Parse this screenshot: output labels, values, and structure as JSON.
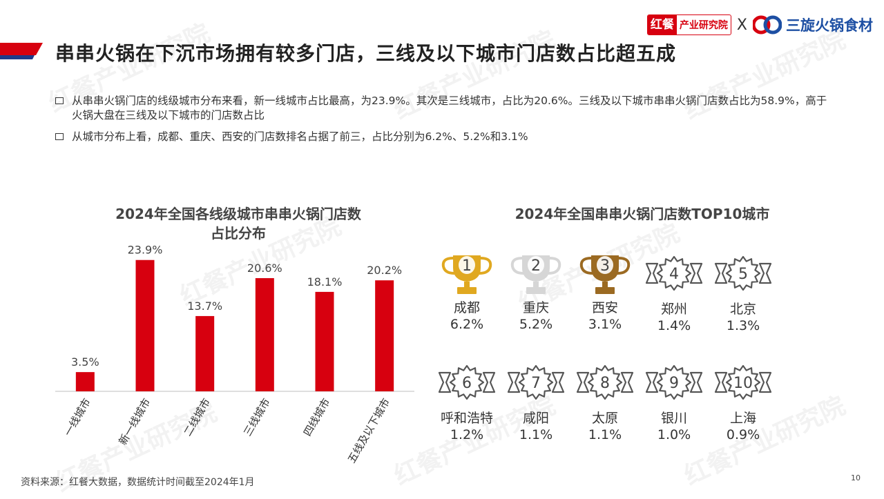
{
  "header": {
    "title": "串串火锅在下沉市场拥有较多门店，三线及以下城市门店数占比超五成",
    "accent_color": "#d7000f",
    "accent_dark": "#1e3a8a"
  },
  "logos": {
    "left_main": "红餐",
    "left_sub": "产业研究院",
    "separator": "X",
    "right_name": "三旋火锅食材",
    "watermark": "红餐产业研究院"
  },
  "bullets": [
    "从串串火锅门店的线级城市分布来看，新一线城市占比最高，为23.9%。其次是三线城市，占比为20.6%。三线及以下城市串串火锅门店数占比为58.9%，高于火锅大盘在三线及以下城市的门店数占比",
    "从城市分布上看，成都、重庆、西安的门店数排名占据了前三，占比分别为6.2%、5.2%和3.1%"
  ],
  "chart_data": [
    {
      "type": "bar",
      "title_line1": "2024年全国各线级城市串串火锅门店数",
      "title_line2": "占比分布",
      "categories": [
        "一线城市",
        "新一线城市",
        "二线城市",
        "三线城市",
        "四线城市",
        "五线及以下城市"
      ],
      "values": [
        3.5,
        23.9,
        13.7,
        20.6,
        18.1,
        20.2
      ],
      "value_labels": [
        "3.5%",
        "23.9%",
        "13.7%",
        "20.6%",
        "18.1%",
        "20.2%"
      ],
      "ylim": [
        0,
        26
      ],
      "bar_color": "#d7000f",
      "grid": false
    },
    {
      "type": "table",
      "title": "2024年全国串串火锅门店数TOP10城市",
      "items": [
        {
          "rank": "1",
          "city": "成都",
          "pct": "6.2%",
          "icon": "trophy-gold-icon",
          "color": "#e0a820"
        },
        {
          "rank": "2",
          "city": "重庆",
          "pct": "5.2%",
          "icon": "trophy-silver-icon",
          "color": "#d6d6d6"
        },
        {
          "rank": "3",
          "city": "西安",
          "pct": "3.1%",
          "icon": "trophy-bronze-icon",
          "color": "#9b6a22"
        },
        {
          "rank": "4",
          "city": "郑州",
          "pct": "1.4%",
          "icon": "rank-badge-icon",
          "color": "#555555"
        },
        {
          "rank": "5",
          "city": "北京",
          "pct": "1.3%",
          "icon": "rank-badge-icon",
          "color": "#555555"
        },
        {
          "rank": "6",
          "city": "呼和浩特",
          "pct": "1.2%",
          "icon": "rank-badge-icon",
          "color": "#555555"
        },
        {
          "rank": "7",
          "city": "咸阳",
          "pct": "1.1%",
          "icon": "rank-badge-icon",
          "color": "#555555"
        },
        {
          "rank": "8",
          "city": "太原",
          "pct": "1.1%",
          "icon": "rank-badge-icon",
          "color": "#555555"
        },
        {
          "rank": "9",
          "city": "银川",
          "pct": "1.0%",
          "icon": "rank-badge-icon",
          "color": "#555555"
        },
        {
          "rank": "10",
          "city": "上海",
          "pct": "0.9%",
          "icon": "rank-badge-icon",
          "color": "#555555"
        }
      ]
    }
  ],
  "footer": {
    "source": "资料来源：红餐大数据，数据统计时间截至2024年1月",
    "page": "10"
  }
}
